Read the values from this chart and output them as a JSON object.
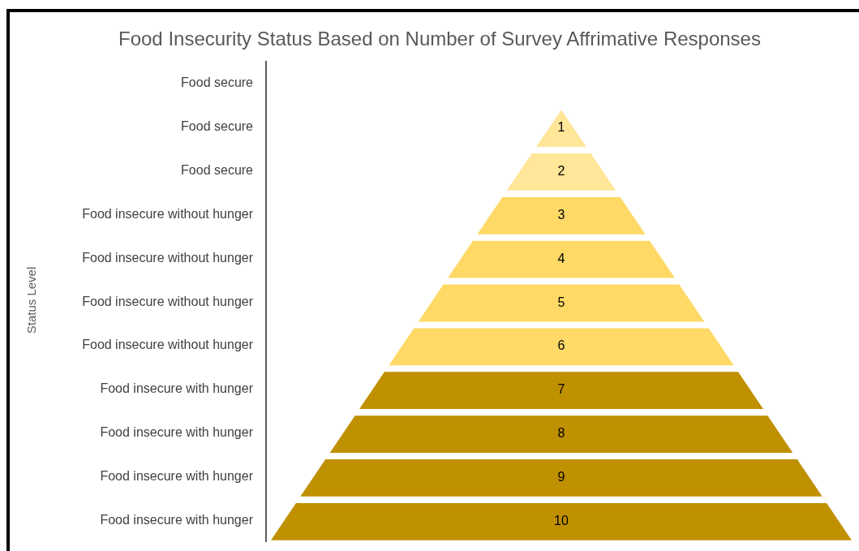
{
  "chart_data": {
    "type": "other",
    "title": "Food Insecurity Status Based on Number of Survey Affrimative Responses",
    "ylabel": "Status Level",
    "categories": [
      "Food secure",
      "Food secure",
      "Food secure",
      "Food insecure without hunger",
      "Food insecure without hunger",
      "Food insecure without hunger",
      "Food insecure without hunger",
      "Food insecure with hunger",
      "Food insecure with hunger",
      "Food insecure with hunger",
      "Food insecure with hunger"
    ],
    "values": [
      null,
      1,
      2,
      3,
      4,
      5,
      6,
      7,
      8,
      9,
      10
    ],
    "colors": [
      null,
      "#ffe699",
      "#ffe699",
      "#ffd966",
      "#ffd966",
      "#ffd966",
      "#ffd966",
      "#bf9000",
      "#bf9000",
      "#bf9000",
      "#bf9000"
    ],
    "data_labels": true
  }
}
